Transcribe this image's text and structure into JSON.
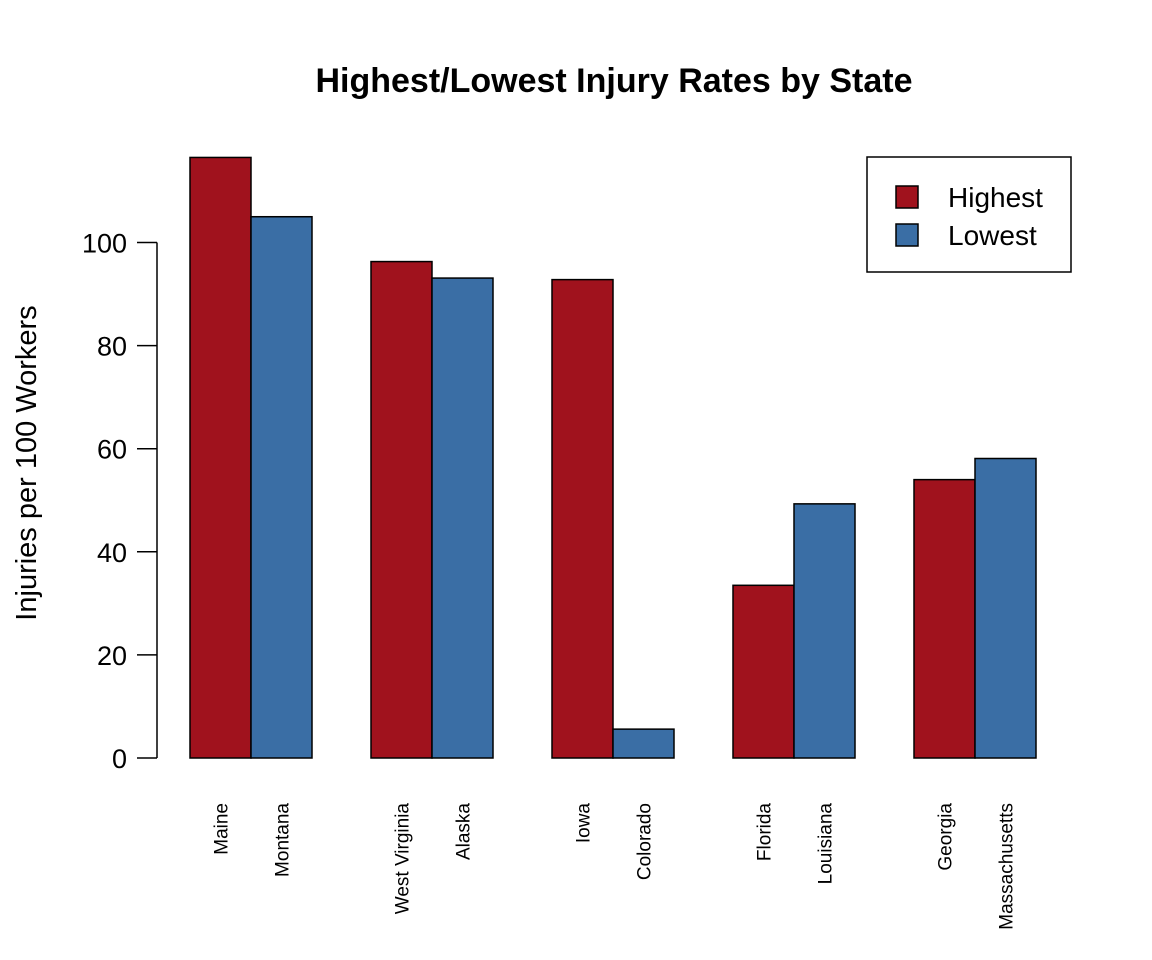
{
  "chart_data": {
    "type": "bar",
    "title": "Highest/Lowest Injury Rates by State",
    "xlabel": "",
    "ylabel": "Injuries per 100 Workers",
    "ylim": [
      0,
      116
    ],
    "yticks": [
      0,
      20,
      40,
      60,
      80,
      100
    ],
    "grid": false,
    "legend_position": "top-right",
    "groups": [
      {
        "highest": {
          "state": "Maine",
          "value": 116.5
        },
        "lowest": {
          "state": "Montana",
          "value": 105
        }
      },
      {
        "highest": {
          "state": "West Virginia",
          "value": 96.3
        },
        "lowest": {
          "state": "Alaska",
          "value": 93.1
        }
      },
      {
        "highest": {
          "state": "Iowa",
          "value": 92.8
        },
        "lowest": {
          "state": "Colorado",
          "value": 5.6
        }
      },
      {
        "highest": {
          "state": "Florida",
          "value": 33.5
        },
        "lowest": {
          "state": "Louisiana",
          "value": 49.3
        }
      },
      {
        "highest": {
          "state": "Georgia",
          "value": 54
        },
        "lowest": {
          "state": "Massachusetts",
          "value": 58.1
        }
      }
    ],
    "series": [
      {
        "key": "highest",
        "name": "Highest",
        "color": "#A0121D"
      },
      {
        "key": "lowest",
        "name": "Lowest",
        "color": "#3A6EA5"
      }
    ]
  }
}
